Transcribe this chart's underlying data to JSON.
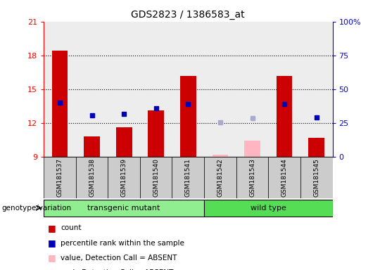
{
  "title": "GDS2823 / 1386583_at",
  "samples": [
    "GSM181537",
    "GSM181538",
    "GSM181539",
    "GSM181540",
    "GSM181541",
    "GSM181542",
    "GSM181543",
    "GSM181544",
    "GSM181545"
  ],
  "groups": [
    "transgenic mutant",
    "transgenic mutant",
    "transgenic mutant",
    "transgenic mutant",
    "transgenic mutant",
    "wild type",
    "wild type",
    "wild type",
    "wild type"
  ],
  "group_colors": {
    "transgenic mutant": "#90EE90",
    "wild type": "#55DD55"
  },
  "count_values": [
    18.4,
    10.8,
    11.6,
    13.1,
    16.2,
    null,
    null,
    16.2,
    10.7
  ],
  "count_absent_values": [
    null,
    null,
    null,
    null,
    null,
    9.15,
    10.4,
    null,
    null
  ],
  "rank_values": [
    13.8,
    12.7,
    12.8,
    13.3,
    13.7,
    null,
    null,
    13.7,
    12.5
  ],
  "rank_absent_values": [
    null,
    null,
    null,
    null,
    null,
    12.05,
    12.4,
    null,
    null
  ],
  "ylim_left": [
    9,
    21
  ],
  "ylim_right": [
    0,
    100
  ],
  "yticks_left": [
    9,
    12,
    15,
    18,
    21
  ],
  "yticks_right": [
    0,
    25,
    50,
    75,
    100
  ],
  "ytick_labels_right": [
    "0",
    "25",
    "50",
    "75",
    "100%"
  ],
  "bar_color_present": "#CC0000",
  "bar_color_absent": "#FFB6C1",
  "rank_color_present": "#0000BB",
  "rank_color_absent": "#AAAACC",
  "bar_width": 0.5,
  "dotted_line_y": [
    12,
    15,
    18
  ],
  "legend_items": [
    {
      "color": "#CC0000",
      "label": "count"
    },
    {
      "color": "#0000BB",
      "label": "percentile rank within the sample"
    },
    {
      "color": "#FFB6C1",
      "label": "value, Detection Call = ABSENT"
    },
    {
      "color": "#AAAACC",
      "label": "rank, Detection Call = ABSENT"
    }
  ],
  "group_label": "genotype/variation"
}
